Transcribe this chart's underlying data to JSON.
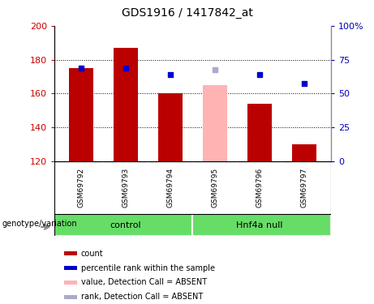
{
  "title": "GDS1916 / 1417842_at",
  "samples": [
    "GSM69792",
    "GSM69793",
    "GSM69794",
    "GSM69795",
    "GSM69796",
    "GSM69797"
  ],
  "bar_bottom": 120,
  "bar_values": [
    175,
    187,
    160,
    165,
    154,
    130
  ],
  "bar_colors": [
    "#bb0000",
    "#bb0000",
    "#bb0000",
    "#ffb3b3",
    "#bb0000",
    "#bb0000"
  ],
  "rank_values": [
    175,
    175,
    171,
    174,
    171,
    166
  ],
  "rank_colors": [
    "#0000cc",
    "#0000cc",
    "#0000cc",
    "#aaaacc",
    "#0000cc",
    "#0000cc"
  ],
  "ylim_left": [
    120,
    200
  ],
  "ylim_right": [
    0,
    100
  ],
  "yticks_left": [
    120,
    140,
    160,
    180,
    200
  ],
  "yticks_right": [
    0,
    25,
    50,
    75,
    100
  ],
  "ytick_right_labels": [
    "0",
    "25",
    "50",
    "75",
    "100%"
  ],
  "control_label": "control",
  "hnf4a_label": "Hnf4a null",
  "genotype_label": "genotype/variation",
  "legend_items": [
    {
      "label": "count",
      "color": "#bb0000"
    },
    {
      "label": "percentile rank within the sample",
      "color": "#0000cc"
    },
    {
      "label": "value, Detection Call = ABSENT",
      "color": "#ffb3b3"
    },
    {
      "label": "rank, Detection Call = ABSENT",
      "color": "#aaaacc"
    }
  ],
  "background_color": "#ffffff",
  "plot_bg_color": "#ffffff",
  "tick_label_color_left": "#cc0000",
  "tick_label_color_right": "#0000bb",
  "bar_width": 0.55,
  "label_box_color": "#cccccc",
  "green_color": "#66dd66",
  "n_control": 3,
  "n_hnf4a": 3
}
